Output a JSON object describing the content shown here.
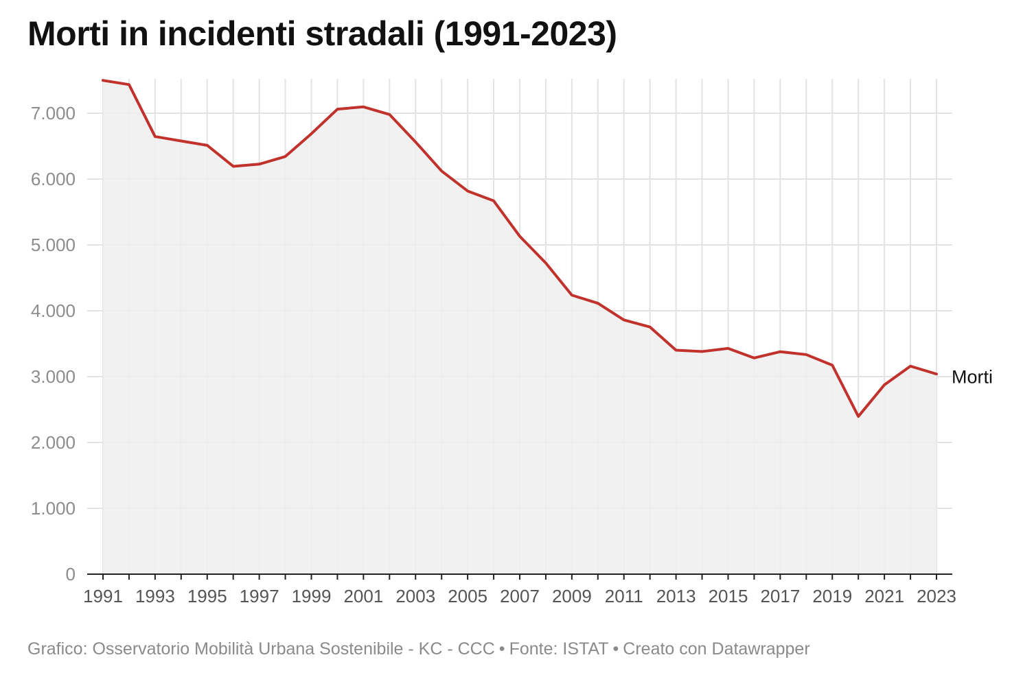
{
  "title": "Morti in incidenti stradali (1991-2023)",
  "footer": {
    "credit": "Grafico: Osservatorio Mobilità Urbana Sostenibile - KC - CCC",
    "separator": "•",
    "source": "Fonte: ISTAT",
    "tool": "Creato con Datawrapper"
  },
  "colors": {
    "line": "#c0322b",
    "area": "#efefef",
    "grid": "#e3e3e3",
    "axis": "#222222",
    "tick_text": "#8c8c8c",
    "x_tick_text": "#555555",
    "label_text": "#111111"
  },
  "chart_data": {
    "type": "area",
    "title": "Morti in incidenti stradali (1991-2023)",
    "xlabel": "",
    "ylabel": "",
    "ylim": [
      0,
      7500
    ],
    "xlim": [
      1991,
      2023
    ],
    "grid": true,
    "y_ticks": [
      0,
      1000,
      2000,
      3000,
      4000,
      5000,
      6000,
      7000
    ],
    "y_tick_labels": [
      "0",
      "1.000",
      "2.000",
      "3.000",
      "4.000",
      "5.000",
      "6.000",
      "7.000"
    ],
    "x_ticks": [
      1991,
      1993,
      1995,
      1997,
      1999,
      2001,
      2003,
      2005,
      2007,
      2009,
      2011,
      2013,
      2015,
      2017,
      2019,
      2021,
      2023
    ],
    "x_tick_labels": [
      "1991",
      "1993",
      "1995",
      "1997",
      "1999",
      "2001",
      "2003",
      "2005",
      "2007",
      "2009",
      "2011",
      "2013",
      "2015",
      "2017",
      "2019",
      "2021",
      "2023"
    ],
    "x": [
      1991,
      1992,
      1993,
      1994,
      1995,
      1996,
      1997,
      1998,
      1999,
      2000,
      2001,
      2002,
      2003,
      2004,
      2005,
      2006,
      2007,
      2008,
      2009,
      2010,
      2011,
      2012,
      2013,
      2014,
      2015,
      2016,
      2017,
      2018,
      2019,
      2020,
      2021,
      2022,
      2023
    ],
    "series": [
      {
        "name": "Morti",
        "values": [
          7498,
          7434,
          6645,
          6578,
          6512,
          6193,
          6226,
          6342,
          6688,
          7061,
          7096,
          6980,
          6563,
          6122,
          5818,
          5669,
          5131,
          4725,
          4237,
          4114,
          3860,
          3753,
          3401,
          3381,
          3428,
          3283,
          3378,
          3334,
          3173,
          2395,
          2875,
          3159,
          3039
        ]
      }
    ]
  }
}
